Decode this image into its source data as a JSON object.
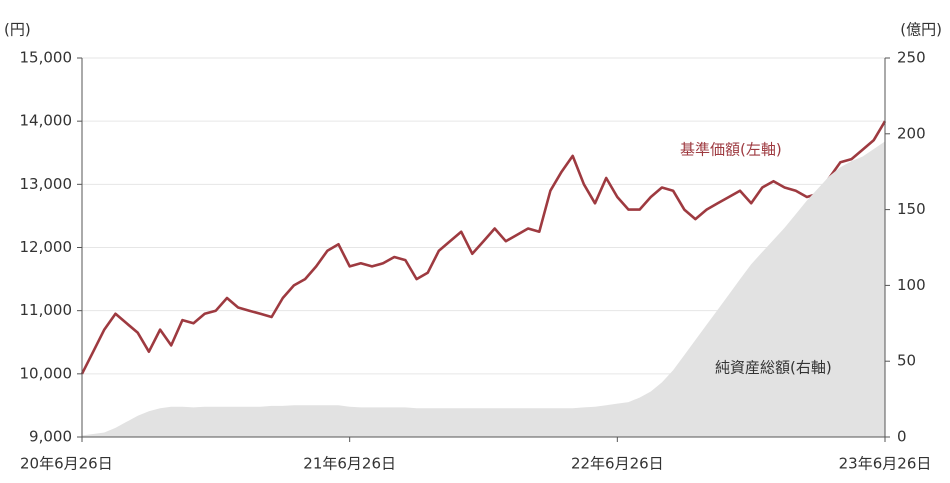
{
  "chart_data": {
    "type": "line-area",
    "y_unit": "(円)",
    "y2_unit": "(億円)",
    "categories": [
      "20年6月26日",
      null,
      null,
      null,
      null,
      null,
      null,
      null,
      null,
      null,
      null,
      null,
      null,
      null,
      null,
      null,
      null,
      null,
      null,
      null,
      null,
      null,
      null,
      null,
      "21年6月26日",
      null,
      null,
      null,
      null,
      null,
      null,
      null,
      null,
      null,
      null,
      null,
      null,
      null,
      null,
      null,
      null,
      null,
      null,
      null,
      null,
      null,
      null,
      null,
      "22年6月26日",
      null,
      null,
      null,
      null,
      null,
      null,
      null,
      null,
      null,
      null,
      null,
      null,
      null,
      null,
      null,
      null,
      null,
      null,
      null,
      null,
      null,
      null,
      null,
      "23年6月26日"
    ],
    "series": [
      {
        "name": "基準価額(左軸)",
        "color": "#9e3a40",
        "kind": "line",
        "values": [
          10000,
          10350,
          10700,
          10950,
          10800,
          10650,
          10350,
          10700,
          10450,
          10850,
          10800,
          10950,
          11000,
          11200,
          11050,
          11000,
          10950,
          10900,
          11200,
          11400,
          11500,
          11700,
          11950,
          12050,
          11700,
          11750,
          11700,
          11750,
          11850,
          11800,
          11500,
          11600,
          11950,
          12100,
          12250,
          11900,
          12100,
          12300,
          12100,
          12200,
          12300,
          12250,
          12900,
          13200,
          13450,
          13000,
          12700,
          13100,
          12800,
          12600,
          12600,
          12800,
          12950,
          12900,
          12600,
          12450,
          12600,
          12700,
          12800,
          12900,
          12700,
          12950,
          13050,
          12950,
          12900,
          12800,
          12850,
          13100,
          13350,
          13400,
          13550,
          13700,
          14000
        ]
      },
      {
        "name": "純資産総額(右軸)",
        "color": "#e2e2e2",
        "kind": "area",
        "axis": "y2",
        "values": [
          1,
          2,
          3,
          6,
          10,
          14,
          17,
          19,
          20,
          20,
          19.5,
          20,
          20,
          20,
          20,
          20,
          20,
          20.5,
          20.5,
          21,
          21,
          21,
          21,
          21,
          20,
          19.5,
          19.5,
          19.5,
          19.5,
          19.5,
          19,
          19,
          19,
          19,
          19,
          19,
          19,
          19,
          19,
          19,
          19,
          19,
          19,
          19,
          19,
          19.5,
          20,
          21,
          22,
          23,
          26,
          30,
          36,
          44,
          54,
          64,
          74,
          84,
          94,
          104,
          114,
          122,
          130,
          138,
          147,
          156,
          164,
          172,
          178,
          182,
          185,
          190,
          195
        ]
      }
    ],
    "ylim": [
      9000,
      15000
    ],
    "yticks": [
      {
        "value": 9000,
        "label": "9,000"
      },
      {
        "value": 10000,
        "label": "10,000"
      },
      {
        "value": 11000,
        "label": "11,000"
      },
      {
        "value": 12000,
        "label": "12,000"
      },
      {
        "value": 13000,
        "label": "13,000"
      },
      {
        "value": 14000,
        "label": "14,000"
      },
      {
        "value": 15000,
        "label": "15,000"
      }
    ],
    "y2lim": [
      0,
      250
    ],
    "y2ticks": [
      0,
      50,
      100,
      150,
      200,
      250
    ],
    "grid": true
  }
}
